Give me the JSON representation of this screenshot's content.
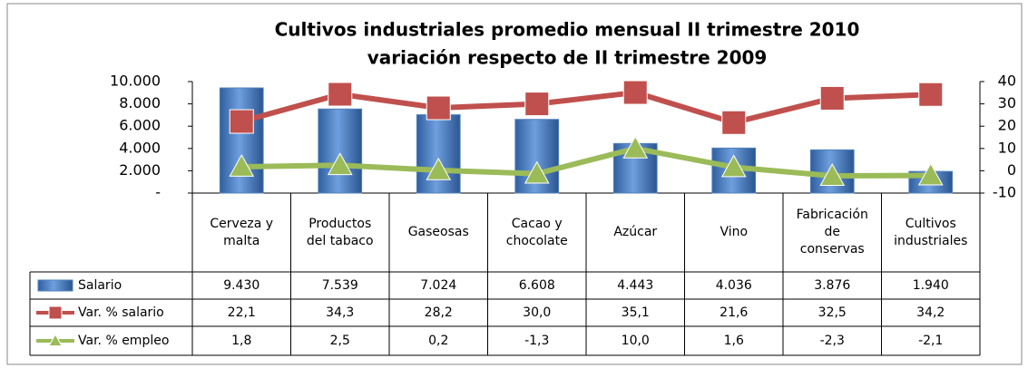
{
  "chart_data": {
    "type": "bar-line",
    "title": "Cultivos industriales promedio mensual  II trimestre 2010",
    "subtitle": "variación respecto de II trimestre 2009",
    "categories": [
      "Cerveza y malta",
      "Productos del tabaco",
      "Gaseosas",
      "Cacao y chocolate",
      "Azúcar",
      "Vino",
      "Fabricación de conservas",
      "Cultivos industriales"
    ],
    "series": [
      {
        "name": "Salario",
        "type": "bar",
        "color": "#4f81bd",
        "values": [
          9430,
          7539,
          7024,
          6608,
          4443,
          4036,
          3876,
          1940
        ],
        "value_labels": [
          "9.430",
          "7.539",
          "7.024",
          "6.608",
          "4.443",
          "4.036",
          "3.876",
          "1.940"
        ]
      },
      {
        "name": "Var. % salario",
        "type": "line",
        "marker": "square",
        "axis": "y2",
        "color": "#c0504d",
        "values": [
          22.1,
          34.3,
          28.2,
          30.0,
          35.1,
          21.6,
          32.5,
          34.2
        ],
        "value_labels": [
          "22,1",
          "34,3",
          "28,2",
          "30,0",
          "35,1",
          "21,6",
          "32,5",
          "34,2"
        ]
      },
      {
        "name": "Var. % empleo",
        "type": "line",
        "marker": "triangle",
        "axis": "y2",
        "color": "#9bbb59",
        "values": [
          1.8,
          2.5,
          0.2,
          -1.3,
          10.0,
          1.6,
          -2.3,
          -2.1
        ],
        "value_labels": [
          "1,8",
          "2,5",
          "0,2",
          "-1,3",
          "10,0",
          "1,6",
          "-2,3",
          "-2,1"
        ]
      }
    ],
    "ylim": [
      0,
      10000
    ],
    "yticks": [
      {
        "value": 0,
        "label": "-"
      },
      {
        "value": 2000,
        "label": "2.000"
      },
      {
        "value": 4000,
        "label": "4.000"
      },
      {
        "value": 6000,
        "label": "6.000"
      },
      {
        "value": 8000,
        "label": "8.000"
      },
      {
        "value": 10000,
        "label": "10.000"
      }
    ],
    "y2lim": [
      -10,
      40
    ],
    "y2ticks": [
      -10,
      0,
      10,
      20,
      30,
      40
    ]
  }
}
